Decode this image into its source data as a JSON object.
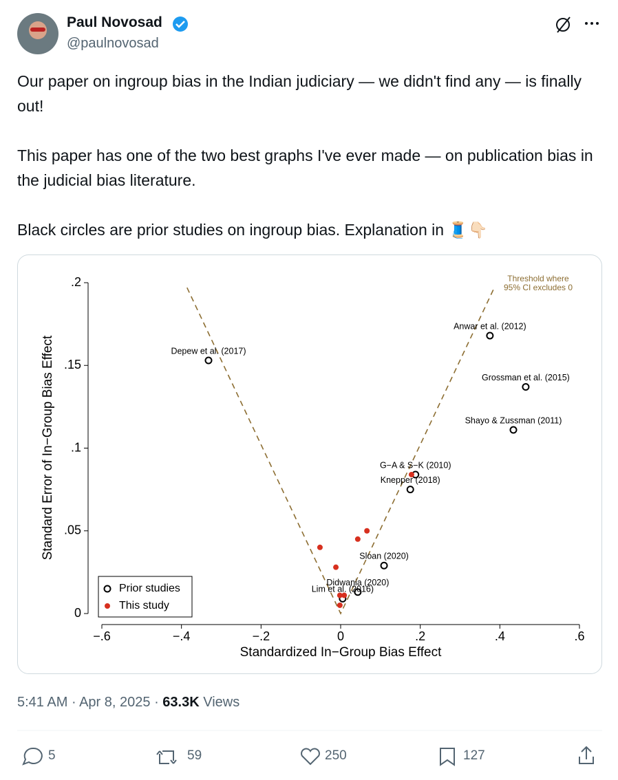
{
  "author": {
    "name": "Paul Novosad",
    "handle": "@paulnovosad"
  },
  "text": [
    "Our paper on ingroup bias in the Indian judiciary — we didn't find any — is finally out!",
    "This paper has one of the two best graphs I've ever made — on publication bias in the judicial bias literature.",
    "Black circles are prior studies on ingroup bias. Explanation in 🧵👇🏻"
  ],
  "chart_data": {
    "type": "scatter",
    "xlabel": "Standardized In−Group Bias Effect",
    "ylabel": "Standard Error of In−Group Bias Effect",
    "xlim": [
      -0.6,
      0.6
    ],
    "ylim": [
      0,
      0.2
    ],
    "xticks": [
      {
        "value": -0.6,
        "label": "−.6"
      },
      {
        "value": -0.4,
        "label": "−.4"
      },
      {
        "value": -0.2,
        "label": "−.2"
      },
      0,
      {
        "value": 0.2,
        "label": ".2"
      },
      {
        "value": 0.4,
        "label": ".4"
      },
      {
        "value": 0.6,
        "label": ".6"
      }
    ],
    "yticks": [
      0,
      {
        "value": 0.05,
        "label": ".05"
      },
      {
        "value": 0.1,
        "label": ".1"
      },
      {
        "value": 0.15,
        "label": ".15"
      },
      {
        "value": 0.2,
        "label": ".2"
      }
    ],
    "legend": "bottom-left",
    "series": [
      {
        "name": "Prior studies",
        "color": "#000000",
        "marker": "hollow",
        "x": [
          -0.332,
          0.375,
          0.465,
          0.434,
          0.188,
          0.175,
          0.109,
          0.043,
          0.005
        ],
        "values": [
          0.153,
          0.168,
          0.137,
          0.111,
          0.084,
          0.075,
          0.029,
          0.013,
          0.009
        ],
        "labels": [
          "Depew et al. (2017)",
          "Anwar et al. (2012)",
          "Grossman et al. (2015)",
          "Shayo & Zussman (2011)",
          "G−A & S−K (2010)",
          "Knepper (2018)",
          "Sloan (2020)",
          "Didwania (2020)",
          "Lim et al. (2016)"
        ]
      },
      {
        "name": "This study",
        "color": "#d7301f",
        "marker": "filled",
        "x": [
          -0.052,
          -0.012,
          0.043,
          0.066,
          0.178,
          -0.002,
          0.009,
          -0.002
        ],
        "values": [
          0.04,
          0.028,
          0.045,
          0.05,
          0.084,
          0.011,
          0.011,
          0.005
        ]
      }
    ],
    "threshold": {
      "label": [
        "Threshold where",
        "95% CI excludes 0"
      ],
      "color": "#8c6d31",
      "x": [
        -0.386,
        0,
        0.386
      ],
      "values": [
        0.197,
        0,
        0.197
      ]
    }
  },
  "meta": {
    "time": "5:41 AM",
    "separator": "·",
    "date": "Apr 8, 2025",
    "views": "63.3K",
    "views_label": "Views"
  },
  "actions": {
    "replies": "5",
    "reposts": "59",
    "likes": "250",
    "bookmarks": "127"
  }
}
